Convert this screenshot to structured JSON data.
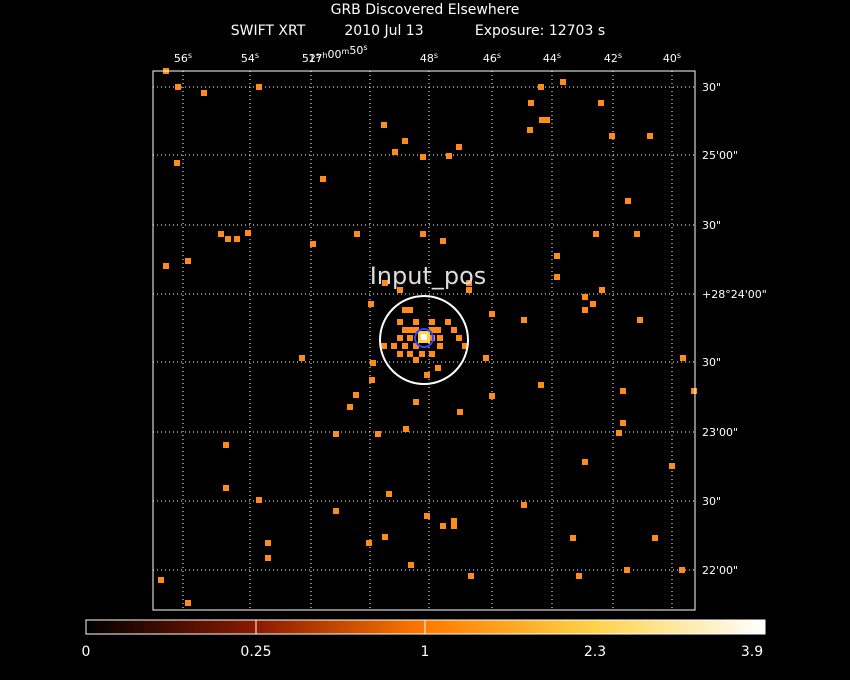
{
  "header": {
    "title": "GRB Discovered Elsewhere",
    "instrument": "SWIFT XRT",
    "date": "2010 Jul 13",
    "exposure": "Exposure: 12703 s"
  },
  "ra_labels": [
    [
      {
        "v": "56",
        "u": "s"
      }
    ],
    [
      {
        "v": "54",
        "u": "s"
      }
    ],
    [
      {
        "v": "52",
        "u": "s"
      }
    ],
    [
      {
        "v": "17",
        "u": "h"
      },
      {
        "v": "00",
        "u": "m"
      },
      {
        "v": "50",
        "u": "s"
      }
    ],
    [
      {
        "v": "48",
        "u": "s"
      }
    ],
    [
      {
        "v": "46",
        "u": "s"
      }
    ],
    [
      {
        "v": "44",
        "u": "s"
      }
    ],
    [
      {
        "v": "42",
        "u": "s"
      }
    ],
    [
      {
        "v": "40",
        "u": "s"
      }
    ]
  ],
  "dec_labels": [
    "30\"",
    "25'00\"",
    "30\"",
    "+28°24'00\"",
    "30\"",
    "23'00\"",
    "30\"",
    "22'00\""
  ],
  "source_label": "Input_pos",
  "colorbar": {
    "labels": [
      0,
      0.25,
      1,
      2.3,
      3.9
    ]
  }
}
